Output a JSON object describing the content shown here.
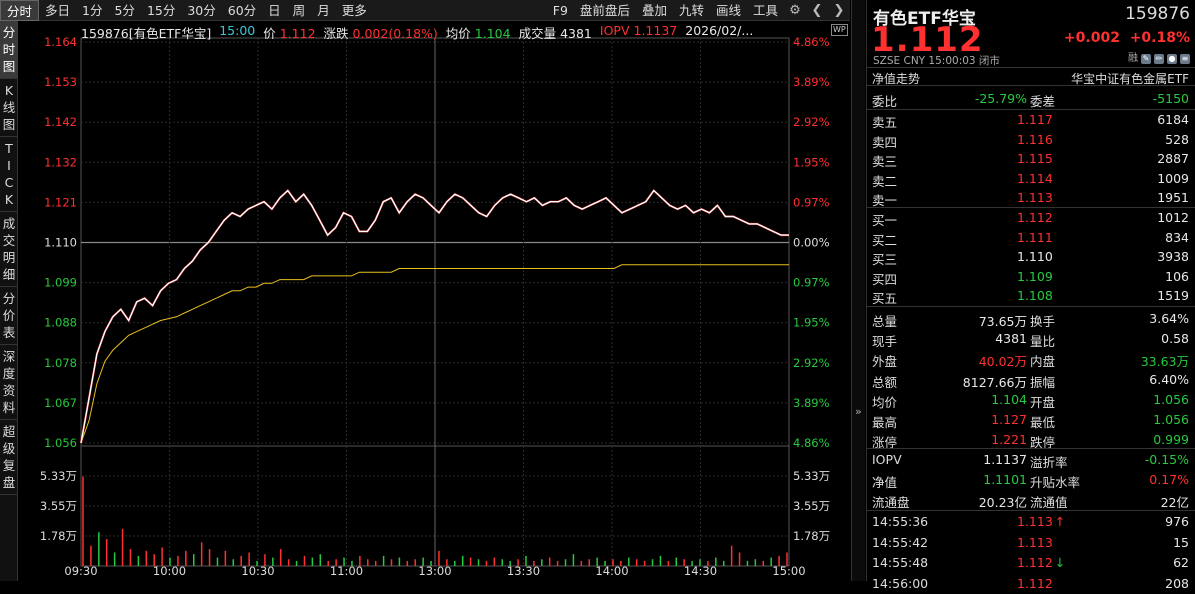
{
  "toolbar": {
    "left": [
      "分时",
      "多日",
      "1分",
      "5分",
      "15分",
      "30分",
      "60分",
      "日",
      "周",
      "月",
      "更多"
    ],
    "right": [
      "F9",
      "盘前盘后",
      "叠加",
      "九转",
      "画线",
      "工具"
    ]
  },
  "left_tabs": [
    "分时图",
    "K线图",
    "TICK",
    "成交明细",
    "分价表",
    "深度资料",
    "超级复盘"
  ],
  "info_bar": {
    "code_name": "159876[有色ETF华宝]",
    "time": "15:00",
    "price_label": "价",
    "price": "1.112",
    "chg_label": "涨跌",
    "chg": "0.002(0.18%)",
    "avg_label": "均价",
    "avg": "1.104",
    "vol_label": "成交量",
    "vol": "4381",
    "iopv_label": "IOPV",
    "iopv": "1.1137",
    "date": "2026/02/..."
  },
  "wp_label": "WP",
  "chart_data": {
    "type": "line",
    "prev_close": 1.11,
    "y_labels_left": [
      "1.164",
      "1.153",
      "1.142",
      "1.132",
      "1.121",
      "1.110",
      "1.099",
      "1.088",
      "1.078",
      "1.067",
      "1.056"
    ],
    "y_labels_right": [
      "4.86%",
      "3.89%",
      "2.92%",
      "1.95%",
      "0.97%",
      "0.00%",
      "0.97%",
      "1.95%",
      "2.92%",
      "3.89%",
      "4.86%"
    ],
    "vol_labels": [
      "5.33万",
      "3.55万",
      "1.78万"
    ],
    "x_labels": [
      "09:30",
      "10:00",
      "10:30",
      "11:00",
      "13:00",
      "13:30",
      "14:00",
      "14:30",
      "15:00"
    ],
    "price_series": [
      1.056,
      1.068,
      1.08,
      1.086,
      1.09,
      1.092,
      1.089,
      1.094,
      1.095,
      1.093,
      1.097,
      1.099,
      1.1,
      1.103,
      1.105,
      1.108,
      1.11,
      1.113,
      1.116,
      1.118,
      1.117,
      1.119,
      1.12,
      1.121,
      1.119,
      1.122,
      1.124,
      1.121,
      1.123,
      1.12,
      1.116,
      1.112,
      1.114,
      1.118,
      1.117,
      1.113,
      1.113,
      1.116,
      1.121,
      1.122,
      1.118,
      1.121,
      1.123,
      1.122,
      1.12,
      1.118,
      1.121,
      1.123,
      1.122,
      1.12,
      1.118,
      1.117,
      1.12,
      1.122,
      1.123,
      1.122,
      1.121,
      1.122,
      1.12,
      1.121,
      1.121,
      1.122,
      1.12,
      1.119,
      1.12,
      1.121,
      1.122,
      1.12,
      1.118,
      1.119,
      1.12,
      1.121,
      1.124,
      1.122,
      1.12,
      1.119,
      1.12,
      1.118,
      1.119,
      1.118,
      1.12,
      1.117,
      1.117,
      1.116,
      1.115,
      1.115,
      1.114,
      1.113,
      1.112,
      1.112
    ],
    "avg_series": [
      1.056,
      1.062,
      1.072,
      1.078,
      1.081,
      1.083,
      1.085,
      1.086,
      1.087,
      1.088,
      1.089,
      1.0895,
      1.09,
      1.091,
      1.092,
      1.093,
      1.094,
      1.095,
      1.096,
      1.097,
      1.097,
      1.098,
      1.098,
      1.099,
      1.099,
      1.1,
      1.1,
      1.1,
      1.1,
      1.101,
      1.101,
      1.101,
      1.101,
      1.101,
      1.101,
      1.102,
      1.102,
      1.102,
      1.102,
      1.102,
      1.103,
      1.103,
      1.103,
      1.103,
      1.103,
      1.103,
      1.103,
      1.103,
      1.103,
      1.103,
      1.103,
      1.103,
      1.103,
      1.103,
      1.103,
      1.103,
      1.103,
      1.103,
      1.103,
      1.103,
      1.103,
      1.103,
      1.103,
      1.103,
      1.103,
      1.103,
      1.103,
      1.103,
      1.104,
      1.104,
      1.104,
      1.104,
      1.104,
      1.104,
      1.104,
      1.104,
      1.104,
      1.104,
      1.104,
      1.104,
      1.104,
      1.104,
      1.104,
      1.104,
      1.104,
      1.104,
      1.104,
      1.104,
      1.104,
      1.104
    ],
    "volume_series": [
      5.3,
      1.2,
      2.0,
      1.6,
      0.8,
      2.2,
      1.0,
      0.6,
      0.9,
      0.7,
      1.1,
      0.5,
      0.6,
      0.9,
      0.7,
      1.4,
      1.0,
      0.5,
      0.9,
      0.4,
      0.6,
      0.8,
      0.3,
      0.7,
      0.5,
      1.0,
      0.4,
      0.3,
      0.6,
      0.5,
      0.7,
      0.3,
      0.4,
      0.5,
      0.3,
      0.6,
      0.4,
      0.3,
      0.6,
      0.4,
      0.5,
      0.3,
      0.4,
      0.5,
      0.3,
      0.9,
      0.4,
      0.3,
      0.6,
      0.5,
      0.4,
      0.3,
      0.5,
      0.4,
      0.3,
      0.4,
      0.6,
      0.3,
      0.4,
      0.5,
      0.3,
      0.4,
      0.7,
      0.3,
      0.4,
      0.5,
      0.3,
      0.4,
      0.3,
      0.5,
      0.4,
      0.3,
      0.4,
      0.6,
      0.3,
      0.5,
      0.4,
      0.3,
      0.4,
      0.3,
      0.5,
      0.3,
      1.2,
      0.8,
      0.3,
      0.4,
      0.3,
      0.5,
      0.6,
      0.8
    ],
    "volume_up": [
      1,
      1,
      0,
      1,
      0,
      1,
      1,
      0,
      1,
      1,
      1,
      0,
      1,
      1,
      0,
      1,
      1,
      0,
      1,
      0,
      1,
      1,
      0,
      1,
      0,
      1,
      1,
      0,
      1,
      0,
      0,
      1,
      1,
      0,
      0,
      1,
      1,
      1,
      0,
      1,
      0,
      1,
      1,
      0,
      0,
      1,
      1,
      0,
      0,
      1,
      0,
      1,
      1,
      0,
      0,
      1,
      0,
      1,
      0,
      1,
      1,
      0,
      0,
      1,
      1,
      0,
      0,
      1,
      1,
      0,
      1,
      1,
      0,
      0,
      1,
      0,
      1,
      0,
      0,
      1,
      0,
      0,
      1,
      1,
      0,
      0,
      1,
      0,
      1,
      1
    ],
    "xlabel": "",
    "ylabel": ""
  },
  "right": {
    "name": "有色ETF华宝",
    "code": "159876",
    "price": "1.112",
    "change": "+0.002",
    "change_pct": "+0.18%",
    "meta": "SZSE  CNY  15:00:03  闭市",
    "meta_tag": "融",
    "nav_label": "净值走势",
    "index_name": "华宝中证有色金属ETF",
    "weibi_label": "委比",
    "weibi": "-25.79%",
    "weicha_label": "委差",
    "weicha": "-5150",
    "sells": [
      {
        "label": "卖五",
        "price": "1.117",
        "vol": "6184",
        "color": "red"
      },
      {
        "label": "卖四",
        "price": "1.116",
        "vol": "528",
        "color": "red"
      },
      {
        "label": "卖三",
        "price": "1.115",
        "vol": "2887",
        "color": "red"
      },
      {
        "label": "卖二",
        "price": "1.114",
        "vol": "1009",
        "color": "red"
      },
      {
        "label": "卖一",
        "price": "1.113",
        "vol": "1951",
        "color": "red"
      }
    ],
    "buys": [
      {
        "label": "买一",
        "price": "1.112",
        "vol": "1012",
        "color": "red"
      },
      {
        "label": "买二",
        "price": "1.111",
        "vol": "834",
        "color": "red"
      },
      {
        "label": "买三",
        "price": "1.110",
        "vol": "3938",
        "color": "white"
      },
      {
        "label": "买四",
        "price": "1.109",
        "vol": "106",
        "color": "green"
      },
      {
        "label": "买五",
        "price": "1.108",
        "vol": "1519",
        "color": "green"
      }
    ],
    "stats": [
      {
        "l1": "总量",
        "v1": "73.65万",
        "c1": "white",
        "l2": "换手",
        "v2": "3.64%",
        "c2": "white"
      },
      {
        "l1": "现手",
        "v1": "4381",
        "c1": "white",
        "l2": "量比",
        "v2": "0.58",
        "c2": "white"
      },
      {
        "l1": "外盘",
        "v1": "40.02万",
        "c1": "red",
        "l2": "内盘",
        "v2": "33.63万",
        "c2": "green"
      },
      {
        "l1": "总额",
        "v1": "8127.66万",
        "c1": "white",
        "l2": "振幅",
        "v2": "6.40%",
        "c2": "white"
      },
      {
        "l1": "均价",
        "v1": "1.104",
        "c1": "green",
        "l2": "开盘",
        "v2": "1.056",
        "c2": "green"
      },
      {
        "l1": "最高",
        "v1": "1.127",
        "c1": "red",
        "l2": "最低",
        "v2": "1.056",
        "c2": "green"
      },
      {
        "l1": "涨停",
        "v1": "1.221",
        "c1": "red",
        "l2": "跌停",
        "v2": "0.999",
        "c2": "green"
      }
    ],
    "stats2": [
      {
        "l1": "IOPV",
        "v1": "1.1137",
        "c1": "white",
        "l2": "溢折率",
        "v2": "-0.15%",
        "c2": "green"
      },
      {
        "l1": "净值",
        "v1": "1.1101",
        "c1": "green",
        "l2": "升贴水率",
        "v2": "0.17%",
        "c2": "red"
      },
      {
        "l1": "流通盘",
        "v1": "20.23亿",
        "c1": "white",
        "l2": "流通值",
        "v2": "22亿",
        "c2": "white"
      }
    ],
    "ticks": [
      {
        "time": "14:55:36",
        "price": "1.113",
        "dir": "up",
        "vol": "976",
        "vcolor": "red"
      },
      {
        "time": "14:55:42",
        "price": "1.113",
        "dir": "",
        "vol": "15",
        "vcolor": "red"
      },
      {
        "time": "14:55:48",
        "price": "1.112",
        "dir": "down",
        "vol": "62",
        "vcolor": "green"
      },
      {
        "time": "14:56:00",
        "price": "1.112",
        "dir": "",
        "vol": "208",
        "vcolor": "red"
      }
    ]
  },
  "colors": {
    "up": "#ff3030",
    "down": "#27c93f",
    "avg_line": "#e8c020",
    "price_line": "#ffffff",
    "grid": "#2a2a2a",
    "accent_time": "#38c8d8"
  }
}
